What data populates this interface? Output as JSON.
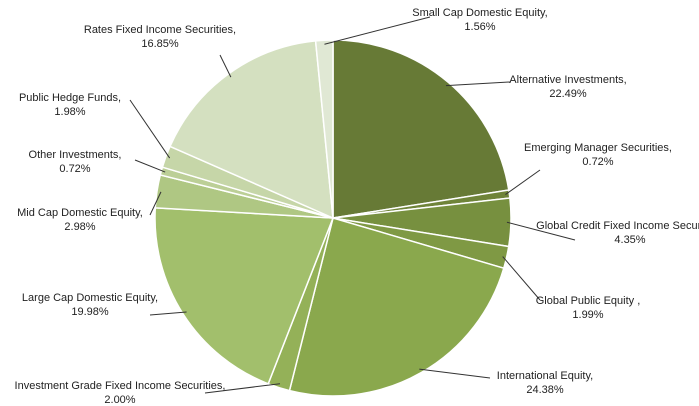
{
  "chart_data": {
    "type": "pie",
    "categories": [
      "Alternative Investments,",
      "Emerging Manager Securities,",
      "Global Credit Fixed Income Securities,",
      "Global Public Equity ,",
      "International Equity,",
      "Investment Grade Fixed Income Securities,",
      "Large Cap Domestic Equity,",
      "Mid Cap Domestic Equity,",
      "Other Investments,",
      "Public Hedge Funds,",
      "Rates Fixed Income Securities,",
      "Small Cap Domestic Equity,"
    ],
    "values": [
      22.49,
      0.72,
      4.35,
      1.99,
      24.38,
      2.0,
      19.98,
      2.98,
      0.72,
      1.98,
      16.85,
      1.56
    ],
    "value_labels": [
      "22.49%",
      "0.72%",
      "4.35%",
      "1.99%",
      "24.38%",
      "2.00%",
      "19.98%",
      "2.98%",
      "0.72%",
      "1.98%",
      "16.85%",
      "1.56%"
    ],
    "colors": [
      "#677a36",
      "#6f8439",
      "#77903f",
      "#7f9944",
      "#8aa84d",
      "#94b158",
      "#a2bf6c",
      "#afc783",
      "#bccf97",
      "#c6d6a8",
      "#d4e0c0",
      "#e0e8d4"
    ]
  }
}
